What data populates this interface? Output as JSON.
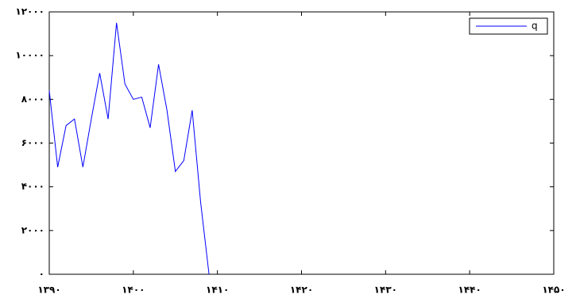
{
  "chart_data": {
    "type": "line",
    "x": [
      1390,
      1391,
      1392,
      1393,
      1394,
      1395,
      1396,
      1397,
      1398,
      1399,
      1400,
      1401,
      1402,
      1403,
      1404,
      1405,
      1406,
      1407,
      1408,
      1409
    ],
    "series": [
      {
        "name": "q",
        "color": "#0000ff",
        "values": [
          8400,
          4900,
          6800,
          7100,
          4900,
          7100,
          9200,
          7100,
          11500,
          8700,
          8000,
          8100,
          6700,
          9600,
          7500,
          4700,
          5200,
          7500,
          3300,
          0
        ]
      }
    ],
    "xlim": [
      1390,
      1450
    ],
    "xticks": [
      {
        "value": 1390,
        "label": "۱۳۹۰"
      },
      {
        "value": 1400,
        "label": "۱۴۰۰"
      },
      {
        "value": 1410,
        "label": "۱۴۱۰"
      },
      {
        "value": 1420,
        "label": "۱۴۲۰"
      },
      {
        "value": 1430,
        "label": "۱۴۳۰"
      },
      {
        "value": 1440,
        "label": "۱۴۴۰"
      },
      {
        "value": 1450,
        "label": "۱۴۵۰"
      }
    ],
    "ylim": [
      0,
      12000
    ],
    "yticks": [
      {
        "value": 0,
        "label": "۰"
      },
      {
        "value": 2000,
        "label": "۲۰۰۰"
      },
      {
        "value": 4000,
        "label": "۴۰۰۰"
      },
      {
        "value": 6000,
        "label": "۶۰۰۰"
      },
      {
        "value": 8000,
        "label": "۸۰۰۰"
      },
      {
        "value": 10000,
        "label": "۱۰۰۰۰"
      },
      {
        "value": 12000,
        "label": "۱۲۰۰۰"
      }
    ],
    "legend": "top-right"
  }
}
